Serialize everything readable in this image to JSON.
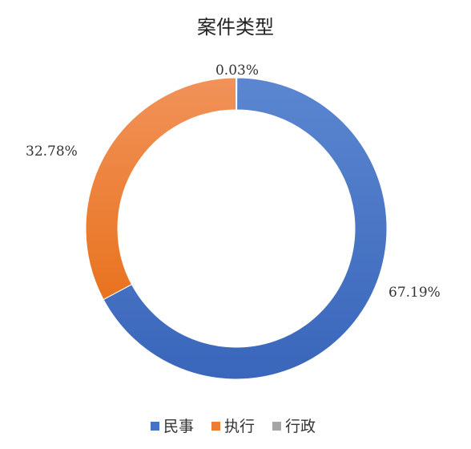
{
  "chart_data": {
    "type": "pie",
    "title": "案件类型",
    "donut": true,
    "categories": [
      "民事",
      "执行",
      "行政"
    ],
    "values": [
      67.19,
      32.78,
      0.03
    ],
    "labels": [
      "67.19%",
      "32.78%",
      "0.03%"
    ],
    "colors": [
      "#4472C4",
      "#ED7D31",
      "#A5A5A5"
    ],
    "legend": "bottom"
  }
}
